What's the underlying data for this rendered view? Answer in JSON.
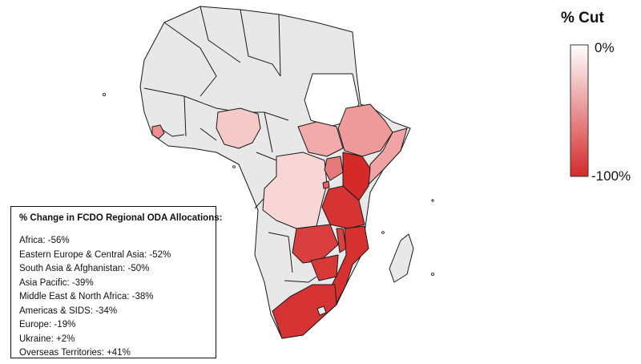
{
  "legend": {
    "title": "% Cut",
    "top_label": "0%",
    "bottom_label": "-100%",
    "color_low": "#ffffff",
    "color_high": "#d42a2a"
  },
  "info": {
    "title": "% Change in FCDO Regional ODA Allocations:",
    "lines": [
      "Africa: -56%",
      "Eastern Europe & Central Asia: -52%",
      "South Asia & Afghanistan: -50%",
      "Asia Pacific: -39%",
      "Middle East & North Africa: -38%",
      "Americas & SIDS: -34%",
      "Europe: -19%",
      "Ukraine: +2%",
      "Overseas Territories: +41%"
    ]
  },
  "colors": {
    "no_data": "#e8e8e8",
    "border": "#1a1a1a"
  },
  "countries": [
    {
      "name": "Sudan",
      "cut": 0
    },
    {
      "name": "Nigeria",
      "cut": 20
    },
    {
      "name": "Sierra Leone",
      "cut": 50
    },
    {
      "name": "DR Congo",
      "cut": 15
    },
    {
      "name": "South Sudan",
      "cut": 35
    },
    {
      "name": "Ethiopia",
      "cut": 45
    },
    {
      "name": "Somalia",
      "cut": 40
    },
    {
      "name": "Uganda",
      "cut": 65
    },
    {
      "name": "Kenya",
      "cut": 90
    },
    {
      "name": "Rwanda",
      "cut": 70
    },
    {
      "name": "Tanzania",
      "cut": 90
    },
    {
      "name": "Zambia",
      "cut": 85
    },
    {
      "name": "Malawi",
      "cut": 85
    },
    {
      "name": "Mozambique",
      "cut": 90
    },
    {
      "name": "Zimbabwe",
      "cut": 88
    },
    {
      "name": "South Africa",
      "cut": 90
    }
  ]
}
